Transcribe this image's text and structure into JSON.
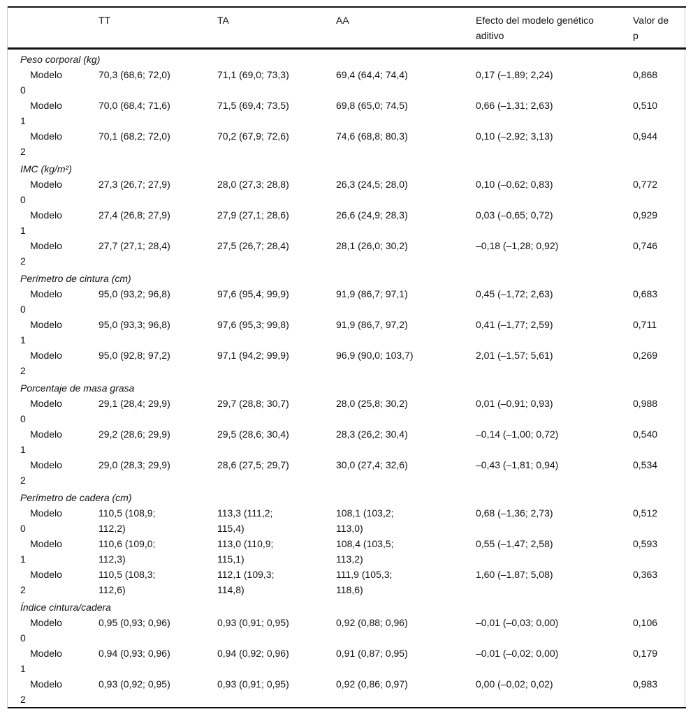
{
  "colors": {
    "rule": "#111111",
    "frame": "#cccccc",
    "text": "#111111",
    "background": "#ffffff"
  },
  "table": {
    "columns": [
      {
        "key": "label",
        "label": ""
      },
      {
        "key": "tt",
        "label": "TT"
      },
      {
        "key": "ta",
        "label": "TA"
      },
      {
        "key": "aa",
        "label": "AA"
      },
      {
        "key": "efecto",
        "label": "Efecto del modelo genético aditivo"
      },
      {
        "key": "p",
        "label": "Valor de p"
      }
    ],
    "sections": [
      {
        "title": "Peso corporal (kg)",
        "rows": [
          {
            "label": "Modelo 0",
            "tt": "70,3 (68,6; 72,0)",
            "ta": "71,1 (69,0; 73,3)",
            "aa": "69,4 (64,4; 74,4)",
            "efecto": "0,17 (–1,89; 2,24)",
            "p": "0,868"
          },
          {
            "label": "Modelo 1",
            "tt": "70,0 (68,4; 71,6)",
            "ta": "71,5 (69,4; 73,5)",
            "aa": "69,8 (65,0; 74,5)",
            "efecto": "0,66 (–1,31; 2,63)",
            "p": "0,510"
          },
          {
            "label": "Modelo 2",
            "tt": "70,1 (68,2; 72,0)",
            "ta": "70,2 (67,9; 72,6)",
            "aa": "74,6 (68,8; 80,3)",
            "efecto": "0,10 (–2,92; 3,13)",
            "p": "0,944"
          }
        ]
      },
      {
        "title": "IMC (kg/m²)",
        "rows": [
          {
            "label": "Modelo 0",
            "tt": "27,3 (26,7; 27,9)",
            "ta": "28,0 (27,3; 28,8)",
            "aa": "26,3 (24,5; 28,0)",
            "efecto": "0,10 (–0,62; 0,83)",
            "p": "0,772"
          },
          {
            "label": "Modelo 1",
            "tt": "27,4 (26,8; 27,9)",
            "ta": "27,9 (27,1; 28,6)",
            "aa": "26,6 (24,9; 28,3)",
            "efecto": "0,03 (–0,65; 0,72)",
            "p": "0,929"
          },
          {
            "label": "Modelo 2",
            "tt": "27,7 (27,1; 28,4)",
            "ta": "27,5 (26,7; 28,4)",
            "aa": "28,1 (26,0; 30,2)",
            "efecto": "–0,18 (–1,28; 0,92)",
            "p": "0,746"
          }
        ]
      },
      {
        "title": "Perímetro de cintura (cm)",
        "rows": [
          {
            "label": "Modelo 0",
            "tt": "95,0 (93,2; 96,8)",
            "ta": "97,6 (95,4; 99,9)",
            "aa": "91,9 (86,7; 97,1)",
            "efecto": "0,45 (–1,72; 2,63)",
            "p": "0,683"
          },
          {
            "label": "Modelo 1",
            "tt": "95,0 (93,3; 96,8)",
            "ta": "97,6 (95,3; 99,8)",
            "aa": "91,9 (86,7, 97,2)",
            "efecto": "0,41 (–1,77; 2,59)",
            "p": "0,711"
          },
          {
            "label": "Modelo 2",
            "tt": "95,0 (92,8; 97,2)",
            "ta": "97,1 (94,2; 99,9)",
            "aa": "96,9 (90,0; 103,7)",
            "efecto": "2,01 (–1,57; 5,61)",
            "p": "0,269"
          }
        ]
      },
      {
        "title": "Porcentaje de masa grasa",
        "rows": [
          {
            "label": "Modelo 0",
            "tt": "29,1 (28,4; 29,9)",
            "ta": "29,7 (28,8; 30,7)",
            "aa": "28,0 (25,8; 30,2)",
            "efecto": "0,01 (–0,91; 0,93)",
            "p": "0,988"
          },
          {
            "label": "Modelo 1",
            "tt": "29,2 (28,6; 29,9)",
            "ta": "29,5 (28,6; 30,4)",
            "aa": "28,3 (26,2; 30,4)",
            "efecto": "–0,14 (–1,00; 0,72)",
            "p": "0,540"
          },
          {
            "label": "Modelo 2",
            "tt": "29,0 (28,3; 29,9)",
            "ta": "28,6 (27,5; 29,7)",
            "aa": "30,0 (27,4; 32,6)",
            "efecto": "–0,43 (–1,81; 0,94)",
            "p": "0,534"
          }
        ]
      },
      {
        "title": "Perímetro de cadera (cm)",
        "rows": [
          {
            "label": "Modelo 0",
            "tt": "110,5 (108,9; 112,2)",
            "ta": "113,3 (111,2; 115,4)",
            "aa": "108,1 (103,2; 113,0)",
            "efecto": "0,68 (–1,36; 2,73)",
            "p": "0,512"
          },
          {
            "label": "Modelo 1",
            "tt": "110,6 (109,0; 112,3)",
            "ta": "113,0 (110,9; 115,1)",
            "aa": "108,4 (103,5; 113,2)",
            "efecto": "0,55 (–1,47; 2,58)",
            "p": "0,593"
          },
          {
            "label": "Modelo 2",
            "tt": "110,5 (108,3; 112,6)",
            "ta": "112,1 (109,3; 114,8)",
            "aa": "111,9 (105,3; 118,6)",
            "efecto": "1,60 (–1,87; 5,08)",
            "p": "0,363"
          }
        ]
      },
      {
        "title": "Índice cintura/cadera",
        "rows": [
          {
            "label": "Modelo 0",
            "tt": "0,95 (0,93; 0,96)",
            "ta": "0,93 (0,91; 0,95)",
            "aa": "0,92 (0,88; 0,96)",
            "efecto": "–0,01 (–0,03; 0,00)",
            "p": "0,106"
          },
          {
            "label": "Modelo 1",
            "tt": "0,94 (0,93; 0,96)",
            "ta": "0,94 (0,92; 0,96)",
            "aa": "0,91 (0,87; 0,95)",
            "efecto": "–0,01 (–0,02; 0,00)",
            "p": "0,179"
          },
          {
            "label": "Modelo 2",
            "tt": "0,93 (0,92; 0,95)",
            "ta": "0,93 (0,91; 0,95)",
            "aa": "0,92 (0,86; 0,97)",
            "efecto": "0,00 (–0,02; 0,02)",
            "p": "0,983"
          }
        ]
      }
    ]
  }
}
